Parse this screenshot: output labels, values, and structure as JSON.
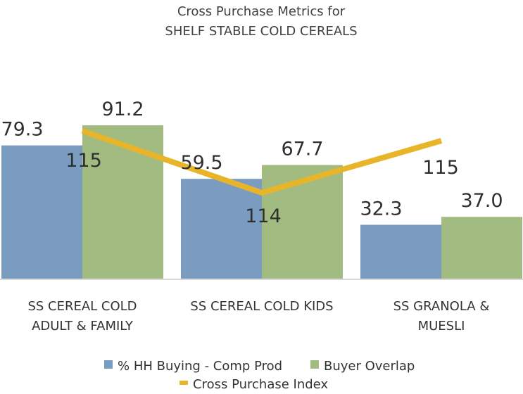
{
  "chart_data": {
    "type": "bar",
    "title": [
      "Cross Purchase Metrics for",
      "SHELF STABLE COLD CEREALS"
    ],
    "categories": [
      [
        "SS CEREAL COLD",
        "ADULT & FAMILY"
      ],
      [
        "SS CEREAL COLD KIDS"
      ],
      [
        "SS GRANOLA &",
        "MUESLI"
      ]
    ],
    "series": [
      {
        "name": "% HH Buying - Comp Prod",
        "type": "bar",
        "color": "#7a9cc0",
        "values": [
          79.3,
          59.5,
          32.3
        ],
        "labels": [
          "79.3",
          "59.5",
          "32.3"
        ]
      },
      {
        "name": "Buyer Overlap",
        "type": "bar",
        "color": "#a2bb80",
        "values": [
          91.2,
          67.7,
          37.0
        ],
        "labels": [
          "91.2",
          "67.7",
          "37.0"
        ]
      },
      {
        "name": "Cross Purchase Index",
        "type": "line",
        "color": "#e8b52a",
        "values": [
          115,
          114,
          115
        ],
        "labels": [
          "115",
          "114",
          "115"
        ]
      }
    ],
    "ylim": [
      0,
      100
    ],
    "grid": false,
    "legend_position": "bottom"
  }
}
